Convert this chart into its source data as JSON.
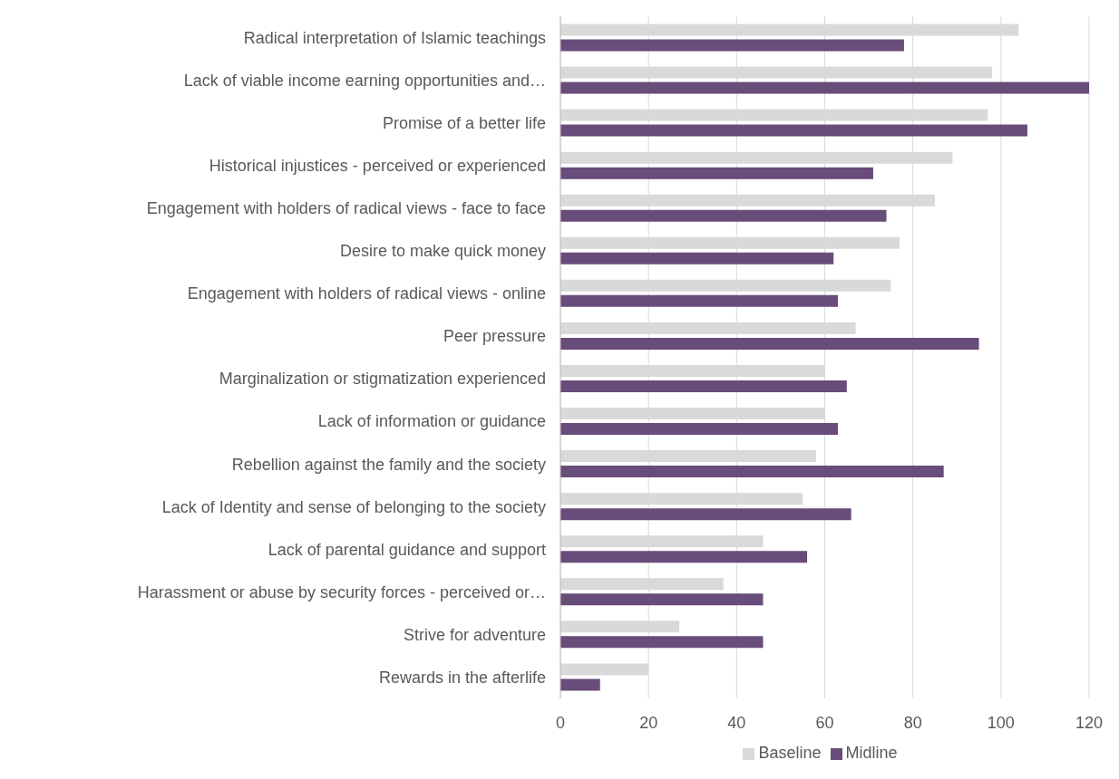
{
  "chart_data": {
    "type": "bar",
    "orientation": "horizontal",
    "categories": [
      "Radical interpretation of Islamic teachings",
      "Lack of viable income earning opportunities and…",
      "Promise of a better life",
      "Historical injustices - perceived or experienced",
      "Engagement with holders of radical views - face to face",
      "Desire to make quick money",
      "Engagement with holders of radical views - online",
      "Peer pressure",
      "Marginalization or stigmatization experienced",
      "Lack of information or guidance",
      "Rebellion against the family and the society",
      "Lack of Identity and sense of belonging to the society",
      "Lack of parental guidance and support",
      "Harassment or abuse by security forces - perceived or…",
      "Strive for adventure",
      "Rewards in the afterlife"
    ],
    "series": [
      {
        "name": "Baseline",
        "color": "#d9d9d9",
        "values": [
          104,
          98,
          97,
          89,
          85,
          77,
          75,
          67,
          60,
          60,
          58,
          55,
          46,
          37,
          27,
          20
        ]
      },
      {
        "name": "Midline",
        "color": "#684c7a",
        "values": [
          78,
          120,
          106,
          71,
          74,
          62,
          63,
          95,
          65,
          63,
          87,
          66,
          56,
          46,
          46,
          9
        ]
      }
    ],
    "xlim": [
      0,
      120
    ],
    "xticks": [
      0,
      20,
      40,
      60,
      80,
      100,
      120
    ],
    "grid": "x",
    "legend": "bottom"
  }
}
